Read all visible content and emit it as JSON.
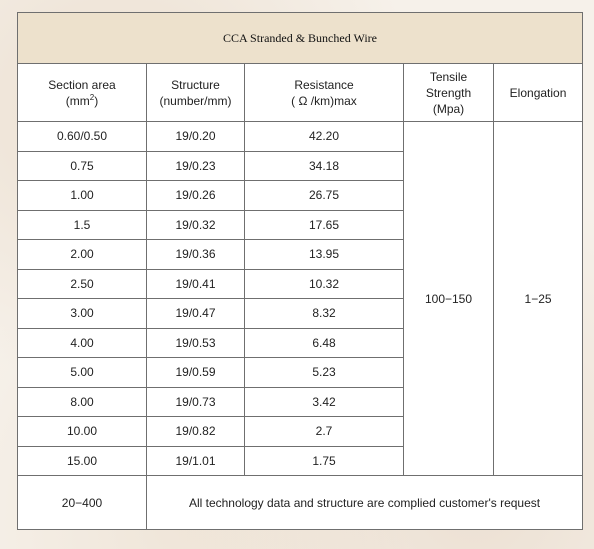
{
  "title": "CCA Stranded & Bunched Wire",
  "headers": {
    "section_area": "Section area",
    "section_area_unit_prefix": "(mm",
    "section_area_unit_sup": "2",
    "section_area_unit_suffix": ")",
    "structure": "Structure",
    "structure_unit": "(number/mm)",
    "resistance": "Resistance",
    "resistance_unit": "( Ω /km)max",
    "tensile": "Tensile Strength",
    "tensile_unit": "(Mpa)",
    "elongation": "Elongation"
  },
  "rows": [
    {
      "section": "0.60/0.50",
      "structure": "19/0.20",
      "resistance": "42.20"
    },
    {
      "section": "0.75",
      "structure": "19/0.23",
      "resistance": "34.18"
    },
    {
      "section": "1.00",
      "structure": "19/0.26",
      "resistance": "26.75"
    },
    {
      "section": "1.5",
      "structure": "19/0.32",
      "resistance": "17.65"
    },
    {
      "section": "2.00",
      "structure": "19/0.36",
      "resistance": "13.95"
    },
    {
      "section": "2.50",
      "structure": "19/0.41",
      "resistance": "10.32"
    },
    {
      "section": "3.00",
      "structure": "19/0.47",
      "resistance": "8.32"
    },
    {
      "section": "4.00",
      "structure": "19/0.53",
      "resistance": "6.48"
    },
    {
      "section": "5.00",
      "structure": "19/0.59",
      "resistance": "5.23"
    },
    {
      "section": "8.00",
      "structure": "19/0.73",
      "resistance": "3.42"
    },
    {
      "section": "10.00",
      "structure": "19/0.82",
      "resistance": "2.7"
    },
    {
      "section": "15.00",
      "structure": "19/1.01",
      "resistance": "1.75"
    }
  ],
  "tensile_value": "100−150",
  "elongation_value": "1−25",
  "footer": {
    "section": "20−400",
    "note": "All technology data and structure are complied customer's request"
  }
}
